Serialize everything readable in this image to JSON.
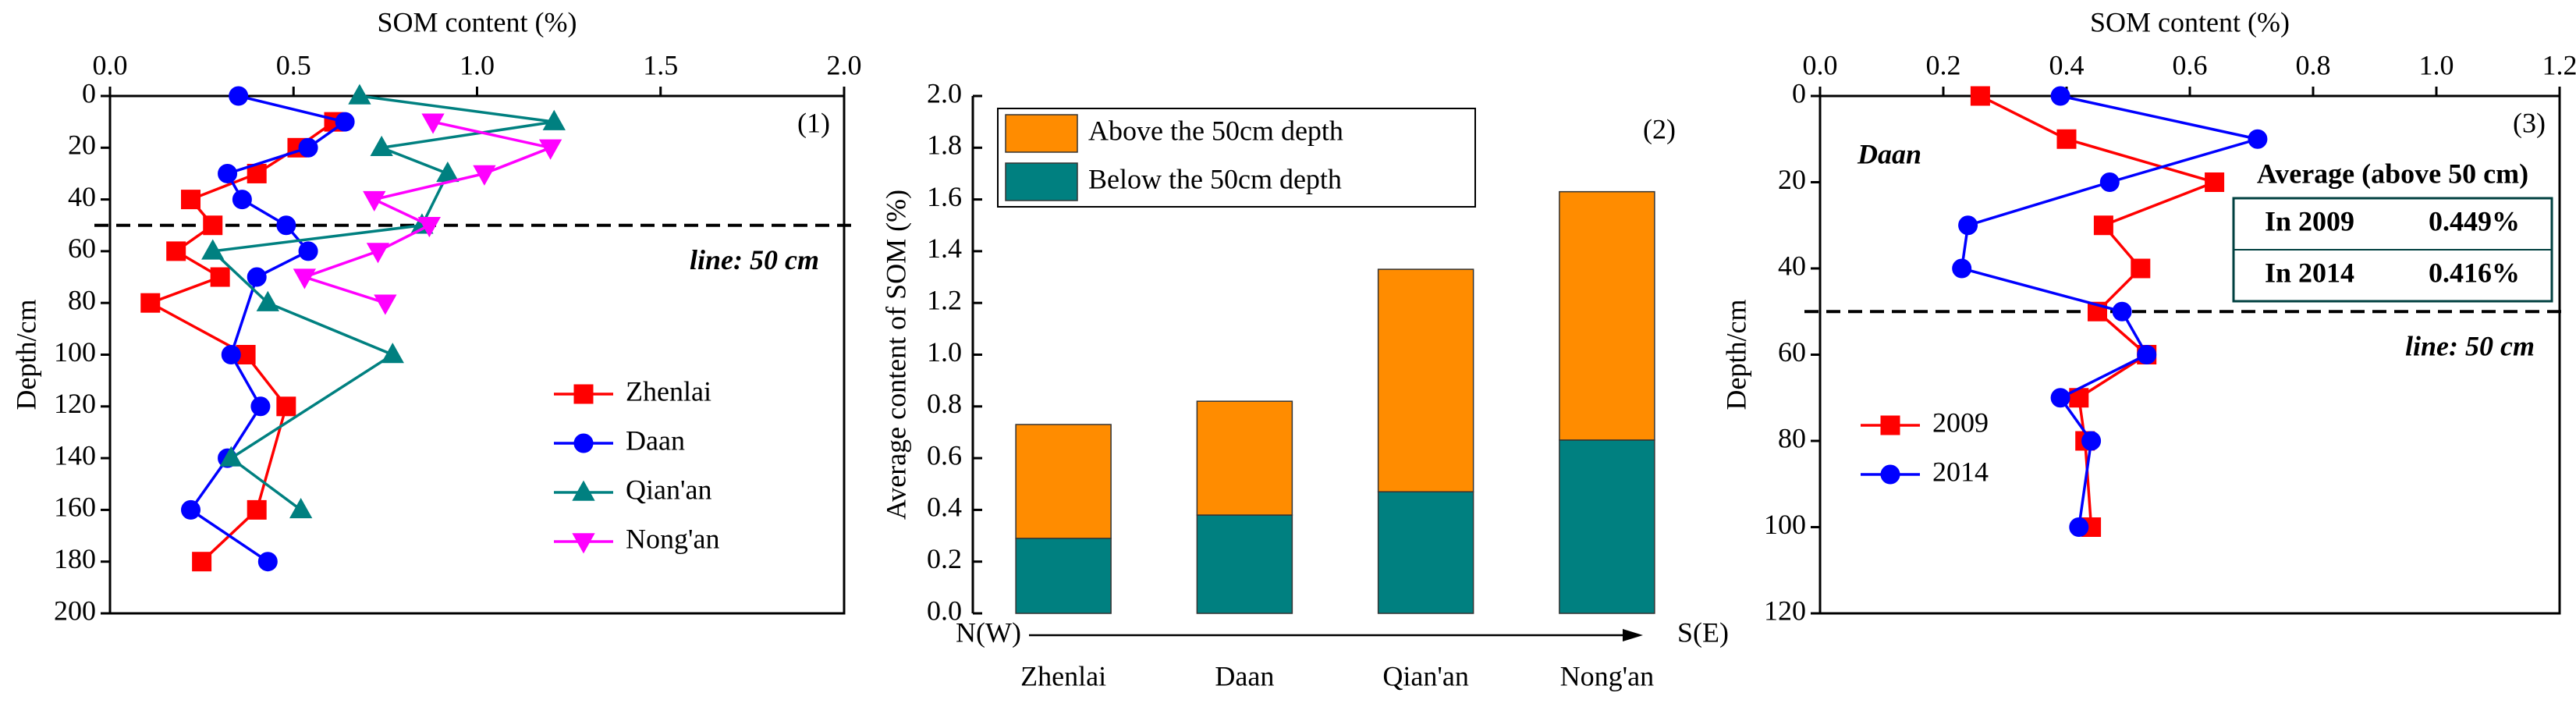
{
  "chart_data": [
    {
      "type": "line",
      "xlabel": "SOM content (%)",
      "ylabel": "Depth/cm",
      "panel_label": "(1)",
      "xlim": [
        0,
        2.0
      ],
      "xticks": [
        {
          "value": 0,
          "label": "0.0"
        },
        {
          "value": 0.5,
          "label": "0.5"
        },
        {
          "value": 1.0,
          "label": "1.0"
        },
        {
          "value": 1.5,
          "label": "1.5"
        },
        {
          "value": 2.0,
          "label": "2.0"
        }
      ],
      "ylim": [
        0,
        200
      ],
      "yticks": [
        0,
        20,
        40,
        60,
        80,
        100,
        120,
        140,
        160,
        180,
        200
      ],
      "y_inverted": true,
      "x_axis_position": "top",
      "hline": {
        "value": 50,
        "label": "line: 50 cm",
        "color": "#ff0000"
      },
      "legend": "center right",
      "series": [
        {
          "name": "Zhenlai",
          "color": "#ff0000",
          "marker": "square",
          "x": [
            0.61,
            0.51,
            0.4,
            0.22,
            0.28,
            0.18,
            0.3,
            0.11,
            0.37,
            0.48,
            0.4,
            0.25
          ],
          "y": [
            10,
            20,
            30,
            40,
            50,
            60,
            70,
            80,
            100,
            120,
            160,
            180
          ]
        },
        {
          "name": "Daan",
          "color": "#0000ff",
          "marker": "circle",
          "x": [
            0.35,
            0.64,
            0.54,
            0.32,
            0.36,
            0.48,
            0.54,
            0.4,
            0.33,
            0.41,
            0.32,
            0.22,
            0.43
          ],
          "y": [
            0,
            10,
            20,
            30,
            40,
            50,
            60,
            70,
            100,
            120,
            140,
            160,
            180
          ]
        },
        {
          "name": "Qian'an",
          "color": "#008080",
          "marker": "triangle-up",
          "x": [
            0.68,
            1.21,
            0.74,
            0.92,
            0.85,
            0.28,
            0.43,
            0.77,
            0.33,
            0.52
          ],
          "y": [
            0,
            10,
            20,
            30,
            50,
            60,
            80,
            100,
            140,
            160
          ]
        },
        {
          "name": "Nong'an",
          "color": "#ff00ff",
          "marker": "triangle-down",
          "x": [
            0.88,
            1.2,
            1.02,
            0.72,
            0.87,
            0.73,
            0.53,
            0.75
          ],
          "y": [
            10,
            20,
            30,
            40,
            50,
            60,
            70,
            80
          ]
        }
      ]
    },
    {
      "type": "bar",
      "ylabel": "Average content of SOM (%)",
      "panel_label": "(2)",
      "categories": [
        "Zhenlai",
        "Daan",
        "Qian'an",
        "Nong'an"
      ],
      "axis_start_label": "N(W)",
      "axis_end_label": "S(E)",
      "ylim": [
        0,
        2.0
      ],
      "yticks": [
        {
          "value": 0,
          "label": "0.0"
        },
        {
          "value": 0.2,
          "label": "0.2"
        },
        {
          "value": 0.4,
          "label": "0.4"
        },
        {
          "value": 0.6,
          "label": "0.6"
        },
        {
          "value": 0.8,
          "label": "0.8"
        },
        {
          "value": 1.0,
          "label": "1.0"
        },
        {
          "value": 1.2,
          "label": "1.2"
        },
        {
          "value": 1.4,
          "label": "1.4"
        },
        {
          "value": 1.6,
          "label": "1.6"
        },
        {
          "value": 1.8,
          "label": "1.8"
        },
        {
          "value": 2.0,
          "label": "2.0"
        }
      ],
      "stacked": true,
      "legend": "upper left",
      "series": [
        {
          "name": "Above the 50cm depth",
          "color": "#ff8c00",
          "values": [
            0.44,
            0.44,
            0.86,
            0.96
          ]
        },
        {
          "name": "Below  the 50cm depth",
          "color": "#008080",
          "values": [
            0.29,
            0.38,
            0.47,
            0.67
          ]
        }
      ]
    },
    {
      "type": "line",
      "xlabel": "SOM content (%)",
      "ylabel": "Depth/cm",
      "panel_label": "(3)",
      "xlim": [
        0,
        1.2
      ],
      "xticks": [
        {
          "value": 0,
          "label": "0.0"
        },
        {
          "value": 0.2,
          "label": "0.2"
        },
        {
          "value": 0.4,
          "label": "0.4"
        },
        {
          "value": 0.6,
          "label": "0.6"
        },
        {
          "value": 0.8,
          "label": "0.8"
        },
        {
          "value": 1.0,
          "label": "1.0"
        },
        {
          "value": 1.2,
          "label": "1.2"
        }
      ],
      "ylim": [
        0,
        120
      ],
      "yticks": [
        0,
        20,
        40,
        60,
        80,
        100,
        120
      ],
      "y_inverted": true,
      "x_axis_position": "top",
      "hline": {
        "value": 50,
        "label": "line: 50 cm",
        "color": "#ff0000"
      },
      "legend": "lower left",
      "site": "Daan",
      "summary": {
        "title": "Average (above 50 cm)",
        "color": "#008080",
        "rows": [
          [
            "In 2009",
            "0.449%"
          ],
          [
            "In 2014",
            "0.416%"
          ]
        ]
      },
      "series": [
        {
          "name": "2009",
          "color": "#ff0000",
          "marker": "square",
          "x": [
            0.26,
            0.4,
            0.64,
            0.46,
            0.52,
            0.45,
            0.53,
            0.42,
            0.43,
            0.44
          ],
          "y": [
            0,
            10,
            20,
            30,
            40,
            50,
            60,
            70,
            80,
            100
          ]
        },
        {
          "name": "2014",
          "color": "#0000ff",
          "marker": "circle",
          "x": [
            0.39,
            0.71,
            0.47,
            0.24,
            0.23,
            0.49,
            0.53,
            0.39,
            0.44,
            0.42
          ],
          "y": [
            0,
            10,
            20,
            30,
            40,
            50,
            60,
            70,
            80,
            100
          ]
        }
      ]
    }
  ]
}
